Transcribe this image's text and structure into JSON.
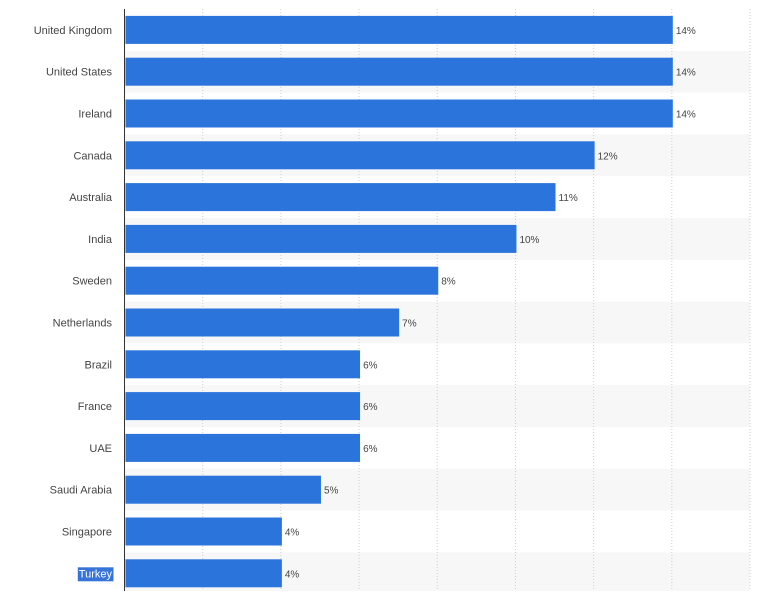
{
  "chart_data": {
    "type": "bar",
    "orientation": "horizontal",
    "title": "",
    "xlabel": "",
    "ylabel": "",
    "xlim": [
      0,
      16
    ],
    "grid": true,
    "categories": [
      "United Kingdom",
      "United States",
      "Ireland",
      "Canada",
      "Australia",
      "India",
      "Sweden",
      "Netherlands",
      "Brazil",
      "France",
      "UAE",
      "Saudi Arabia",
      "Singapore",
      "Turkey"
    ],
    "values": [
      14,
      14,
      14,
      12,
      11,
      10,
      8,
      7,
      6,
      6,
      6,
      5,
      4,
      4
    ],
    "value_labels": [
      "14%",
      "14%",
      "14%",
      "12%",
      "11%",
      "10%",
      "8%",
      "7%",
      "6%",
      "6%",
      "6%",
      "5%",
      "4%",
      "4%"
    ],
    "highlighted_category": "Turkey",
    "colors": {
      "bar": "#2b74db",
      "grid": "#cfcfcf",
      "band": "#f7f7f7",
      "axis": "#333333",
      "text": "#444444",
      "highlight_bg": "#3874d8",
      "highlight_text": "#ffffff"
    }
  }
}
